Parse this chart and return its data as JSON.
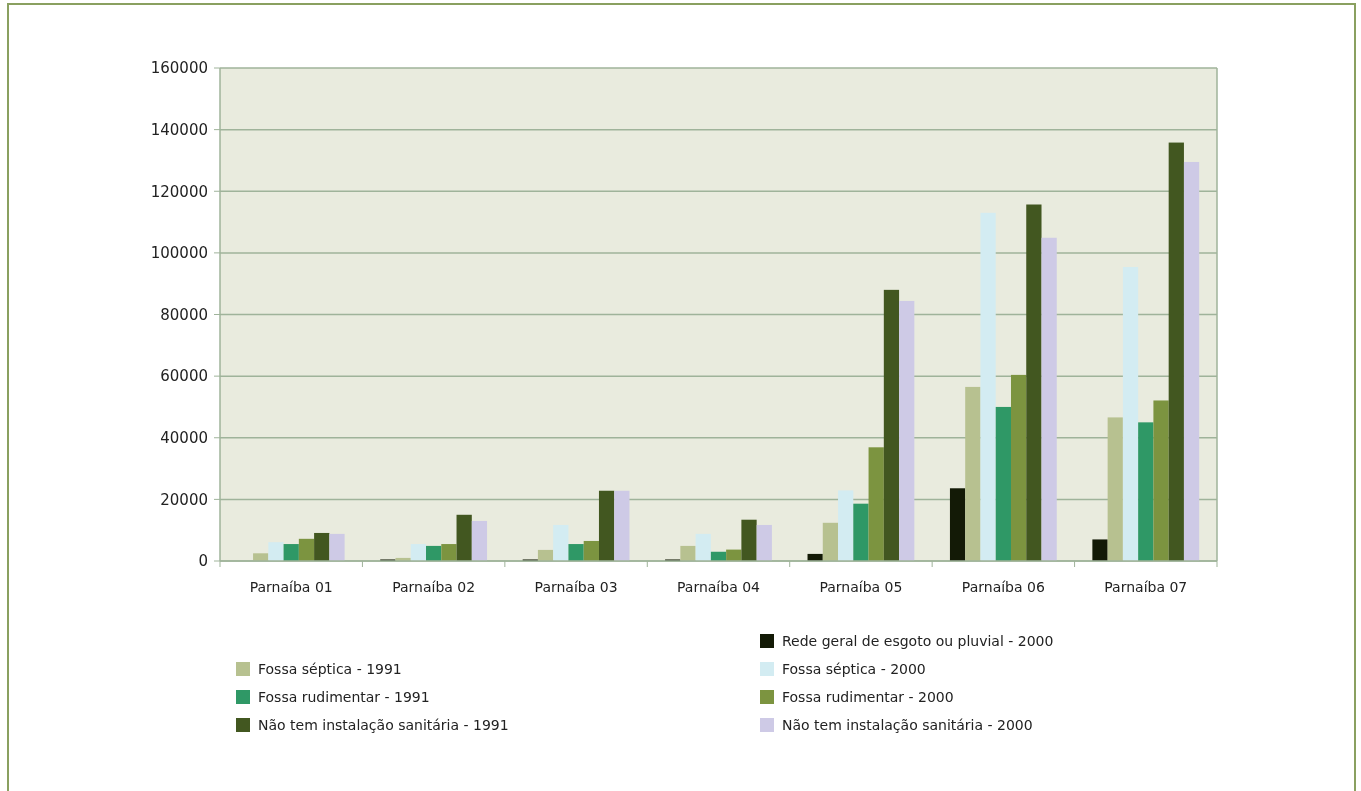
{
  "chart_data": {
    "type": "bar",
    "categories": [
      "Parnaíba 01",
      "Parnaíba 02",
      "Parnaíba 03",
      "Parnaíba 04",
      "Parnaíba 05",
      "Parnaíba 06",
      "Parnaíba 07"
    ],
    "series": [
      {
        "name": "Rede geral de esgoto ou pluvial - 2000",
        "color": "#131a06",
        "values": [
          0,
          500,
          500,
          500,
          2300,
          23600,
          7000
        ]
      },
      {
        "name": "Fossa séptica - 1991",
        "color": "#b7c190",
        "values": [
          2500,
          1000,
          3600,
          4900,
          12400,
          56500,
          46600
        ]
      },
      {
        "name": "Fossa séptica - 2000",
        "color": "#d3ecf2",
        "values": [
          6100,
          5500,
          11700,
          8800,
          22900,
          113000,
          95400
        ]
      },
      {
        "name": "Fossa rudimentar - 1991",
        "color": "#2f9866",
        "values": [
          5500,
          4900,
          5500,
          3000,
          18600,
          50000,
          45000
        ]
      },
      {
        "name": "Fossa rudimentar - 2000",
        "color": "#7c9440",
        "values": [
          7200,
          5500,
          6500,
          3700,
          36900,
          60400,
          52100
        ]
      },
      {
        "name": "Não tem instalação sanitária - 1991",
        "color": "#425720",
        "values": [
          9100,
          15000,
          22800,
          13400,
          88000,
          115700,
          135800
        ]
      },
      {
        "name": "Não tem instalação sanitária - 2000",
        "color": "#cecae6",
        "values": [
          8800,
          13000,
          22800,
          11700,
          84400,
          104900,
          129500
        ]
      }
    ],
    "ylim": [
      0,
      160000
    ],
    "yticks": [
      0,
      20000,
      40000,
      60000,
      80000,
      100000,
      120000,
      140000,
      160000
    ],
    "grid": "y",
    "legend": "bottom"
  }
}
